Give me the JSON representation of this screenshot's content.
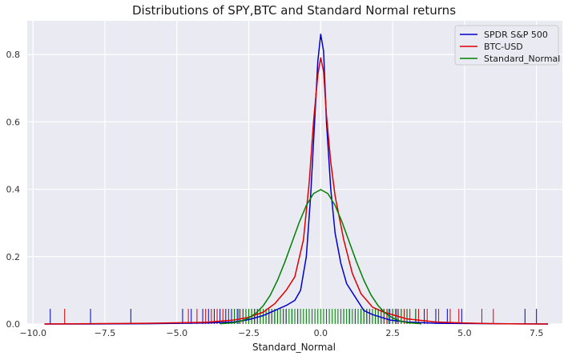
{
  "chart_data": {
    "type": "line",
    "title": "Distributions of SPY,BTC and Standard Normal returns",
    "xlabel": "Standard_Normal",
    "ylabel": "",
    "xlim": [
      -10.2,
      8.4
    ],
    "ylim": [
      0,
      0.9
    ],
    "xticks": [
      {
        "value": -10.0,
        "label": "−10.0"
      },
      {
        "value": -7.5,
        "label": "−7.5"
      },
      {
        "value": -5.0,
        "label": "−5.0"
      },
      {
        "value": -2.5,
        "label": "−2.5"
      },
      {
        "value": 0.0,
        "label": "0.0"
      },
      {
        "value": 2.5,
        "label": "2.5"
      },
      {
        "value": 5.0,
        "label": "5.0"
      },
      {
        "value": 7.5,
        "label": "7.5"
      }
    ],
    "yticks": [
      {
        "value": 0.0,
        "label": "0.0"
      },
      {
        "value": 0.2,
        "label": "0.2"
      },
      {
        "value": 0.4,
        "label": "0.4"
      },
      {
        "value": 0.6,
        "label": "0.6"
      },
      {
        "value": 0.8,
        "label": "0.8"
      }
    ],
    "grid": true,
    "legend_position": "top-right",
    "rug_height": 0.045,
    "series": [
      {
        "name": "SPDR S&P 500",
        "color": "#0000cc",
        "x": [
          -9.6,
          -8.0,
          -6.0,
          -4.0,
          -3.0,
          -2.5,
          -2.0,
          -1.6,
          -1.2,
          -0.9,
          -0.7,
          -0.5,
          -0.35,
          -0.2,
          -0.1,
          0.0,
          0.1,
          0.2,
          0.35,
          0.5,
          0.7,
          0.9,
          1.2,
          1.5,
          1.8,
          2.1,
          2.4,
          3.0,
          4.0,
          6.0,
          7.9
        ],
        "y": [
          0.0,
          0.0,
          0.001,
          0.003,
          0.006,
          0.013,
          0.025,
          0.04,
          0.055,
          0.07,
          0.1,
          0.2,
          0.38,
          0.62,
          0.78,
          0.86,
          0.81,
          0.6,
          0.4,
          0.27,
          0.18,
          0.12,
          0.08,
          0.04,
          0.028,
          0.02,
          0.012,
          0.006,
          0.002,
          0.001,
          0.0
        ]
      },
      {
        "name": "BTC-USD",
        "color": "#dd0000",
        "x": [
          -9.6,
          -8.0,
          -6.0,
          -4.0,
          -3.0,
          -2.5,
          -2.0,
          -1.6,
          -1.2,
          -0.9,
          -0.6,
          -0.4,
          -0.25,
          -0.1,
          0.0,
          0.1,
          0.2,
          0.35,
          0.5,
          0.8,
          1.1,
          1.4,
          1.8,
          2.2,
          2.6,
          3.0,
          4.0,
          5.0,
          6.0,
          7.9
        ],
        "y": [
          0.0,
          0.001,
          0.002,
          0.005,
          0.012,
          0.02,
          0.035,
          0.06,
          0.1,
          0.14,
          0.25,
          0.42,
          0.6,
          0.74,
          0.79,
          0.75,
          0.62,
          0.48,
          0.38,
          0.25,
          0.15,
          0.09,
          0.05,
          0.035,
          0.025,
          0.015,
          0.006,
          0.003,
          0.001,
          0.0
        ]
      },
      {
        "name": "Standard_Normal",
        "color": "#008000",
        "x": [
          -3.5,
          -3.0,
          -2.75,
          -2.5,
          -2.25,
          -2.0,
          -1.75,
          -1.5,
          -1.25,
          -1.0,
          -0.75,
          -0.5,
          -0.25,
          0.0,
          0.25,
          0.5,
          0.75,
          1.0,
          1.25,
          1.5,
          1.75,
          2.0,
          2.25,
          2.5,
          2.75,
          3.0,
          3.5
        ],
        "y": [
          0.001,
          0.004,
          0.009,
          0.018,
          0.032,
          0.054,
          0.086,
          0.13,
          0.183,
          0.242,
          0.301,
          0.352,
          0.387,
          0.399,
          0.387,
          0.352,
          0.301,
          0.242,
          0.183,
          0.13,
          0.086,
          0.054,
          0.032,
          0.018,
          0.009,
          0.004,
          0.001
        ]
      }
    ],
    "rugs": [
      {
        "name": "SPDR S&P 500",
        "color": "#0000cc",
        "values": [
          -9.4,
          -8.0,
          -6.6,
          -4.8,
          -4.5,
          -4.1,
          -3.9,
          -3.7,
          -3.5,
          -3.3,
          -3.1,
          -2.9,
          -2.7,
          -2.5,
          -2.3,
          -2.2,
          -2.0,
          -1.8,
          -1.6,
          -1.4,
          -1.2,
          -1.0,
          -0.8,
          0.8,
          1.0,
          1.2,
          1.4,
          1.6,
          1.8,
          2.0,
          2.2,
          2.4,
          2.6,
          2.8,
          3.0,
          3.3,
          3.6,
          4.0,
          4.4,
          4.9,
          7.1,
          7.5
        ]
      },
      {
        "name": "BTC-USD",
        "color": "#dd0000",
        "values": [
          -8.9,
          -4.6,
          -4.3,
          -4.0,
          -3.8,
          -3.6,
          -3.4,
          -3.2,
          -3.0,
          -2.8,
          -2.6,
          -2.4,
          -2.3,
          -2.1,
          -1.9,
          -1.7,
          -1.5,
          -1.3,
          1.3,
          1.5,
          1.7,
          1.9,
          2.1,
          2.3,
          2.5,
          2.7,
          2.9,
          3.1,
          3.4,
          3.7,
          4.1,
          4.5,
          4.8,
          5.6,
          6.0
        ]
      },
      {
        "name": "Standard_Normal",
        "color": "#008000",
        "values": [
          -3.2,
          -3.0,
          -2.85,
          -2.7,
          -2.6,
          -2.5,
          -2.4,
          -2.3,
          -2.2,
          -2.1,
          -2.0,
          -1.9,
          -1.8,
          -1.7,
          -1.6,
          -1.5,
          -1.4,
          -1.3,
          -1.2,
          -1.1,
          -1.0,
          -0.9,
          -0.8,
          -0.7,
          -0.6,
          -0.5,
          -0.4,
          -0.3,
          -0.2,
          -0.1,
          0.0,
          0.1,
          0.2,
          0.3,
          0.4,
          0.5,
          0.6,
          0.7,
          0.8,
          0.9,
          1.0,
          1.1,
          1.2,
          1.3,
          1.4,
          1.5,
          1.6,
          1.7,
          1.8,
          1.9,
          2.0,
          2.1,
          2.2,
          2.35,
          2.5,
          2.65,
          2.8,
          3.0,
          3.3
        ]
      }
    ]
  }
}
